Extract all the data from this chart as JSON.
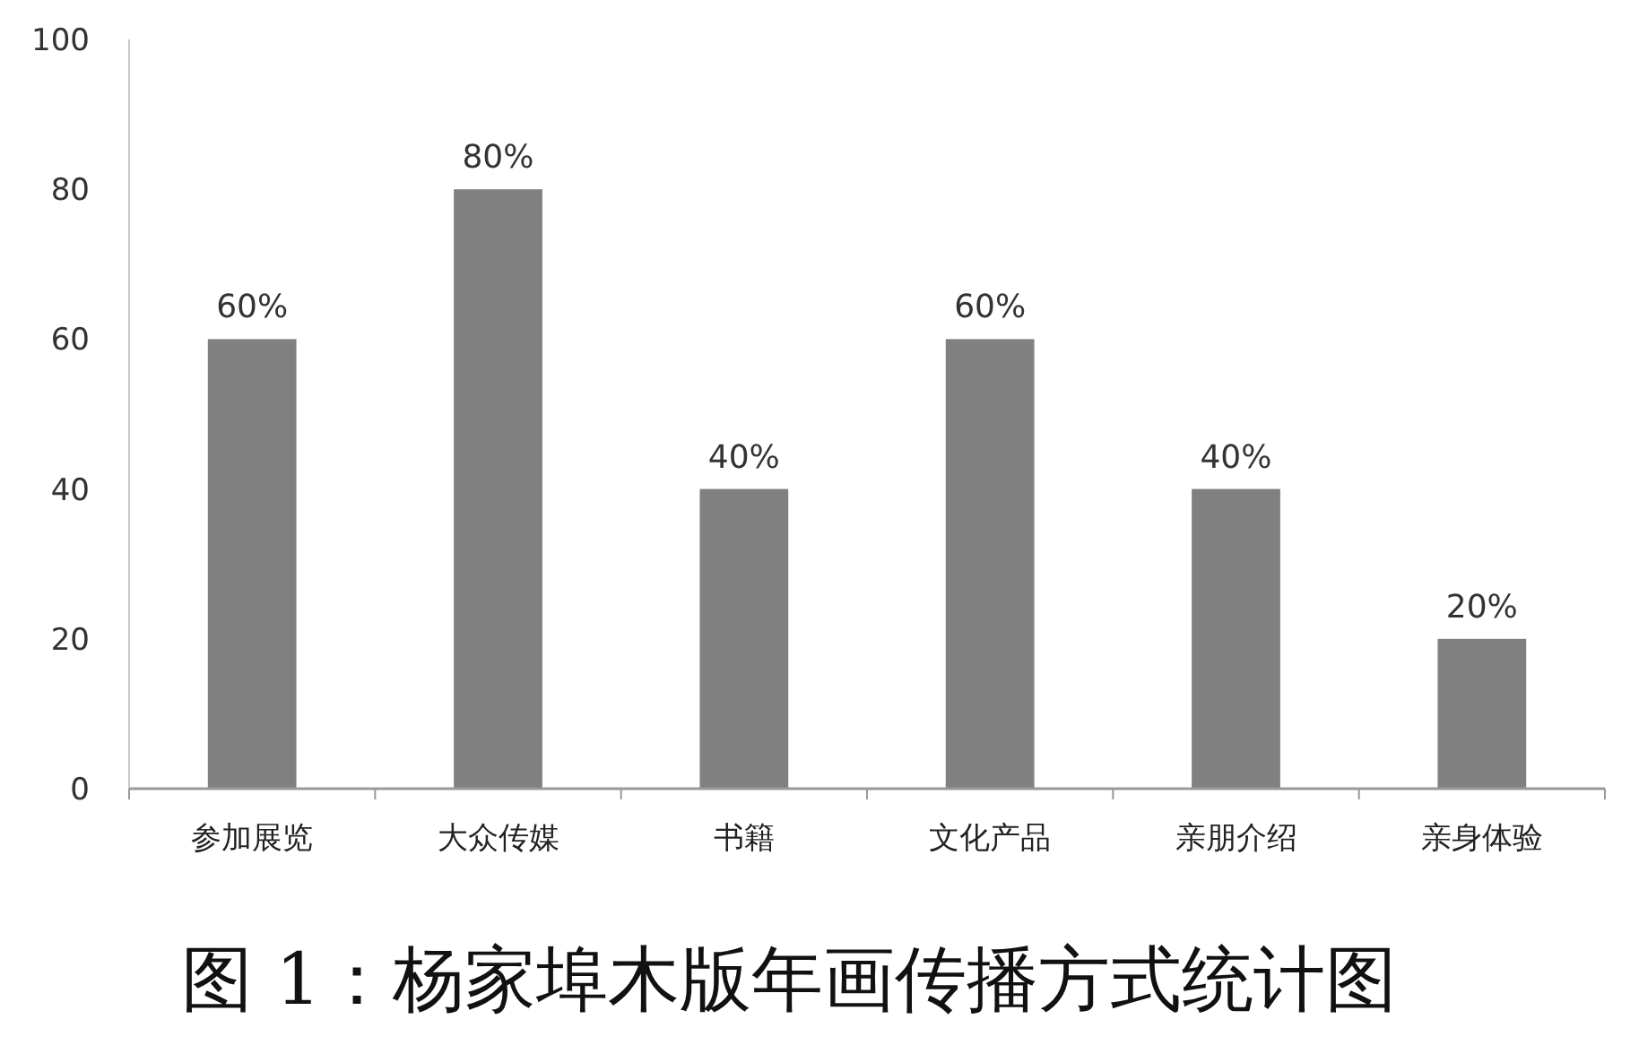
{
  "chart_data": {
    "type": "bar",
    "title": "图 1：杨家埠木版年画传播方式统计图",
    "categories": [
      "参加展览",
      "大众传媒",
      "书籍",
      "文化产品",
      "亲朋介绍",
      "亲身体验"
    ],
    "values": [
      60,
      80,
      40,
      60,
      40,
      20
    ],
    "value_labels": [
      "60%",
      "80%",
      "40%",
      "60%",
      "40%",
      "20%"
    ],
    "color": "#808080",
    "ylim": [
      0,
      100
    ],
    "yticks": [
      0,
      20,
      40,
      60,
      80,
      100
    ]
  }
}
